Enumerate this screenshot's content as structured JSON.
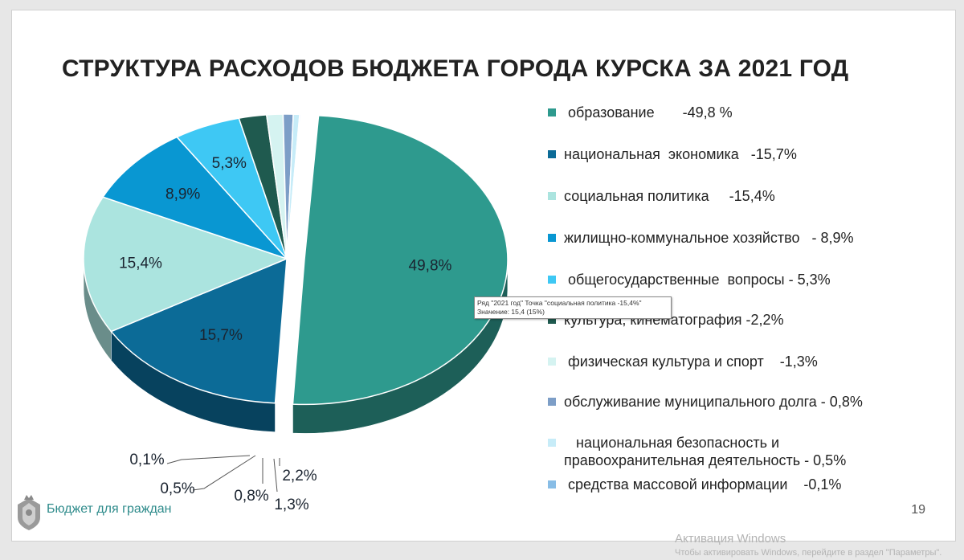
{
  "slide": {
    "title": "СТРУКТУРА РАСХОДОВ БЮДЖЕТА ГОРОДА КУРСКА ЗА 2021 ГОД",
    "footer_text": "Бюджет для граждан",
    "page_number": "19",
    "tooltip_line1": "Ряд \"2021 год\" Точка \"социальная политика      -15,4%\"",
    "tooltip_line2": "Значение: 15,4 (15%)"
  },
  "watermark": {
    "line1": "Активация Windows",
    "line2": "Чтобы активировать Windows, перейдите в раздел \"Параметры\"."
  },
  "legend": [
    {
      "text": " образование       -49,8 %",
      "color": "#2e9a8e"
    },
    {
      "text": "национальная  экономика   -15,7%",
      "color": "#0c6b97"
    },
    {
      "text": "социальная политика     -15,4%",
      "color": "#abe4df"
    },
    {
      "text": "жилищно-коммунальное хозяйство   - 8,9%",
      "color": "#0997d2"
    },
    {
      "text": " общегосударственные  вопросы - 5,3%",
      "color": "#3ec8f4"
    },
    {
      "text": "культура, кинематография -2,2%",
      "color": "#1f5a4f"
    },
    {
      "text": " физическая культура и спорт    -1,3%",
      "color": "#d5f3f1"
    },
    {
      "text": "обслуживание муниципального долга - 0,8%",
      "color": "#7d9ec7"
    },
    {
      "text": "   национальная безопасность и\nправоохранительная деятельность - 0,5%",
      "color": "#c7ecf8"
    },
    {
      "text": " средства массовой информации    -0,1%",
      "color": "#88bde6"
    }
  ],
  "chart_data": {
    "type": "pie",
    "title": "СТРУКТУРА РАСХОДОВ БЮДЖЕТА ГОРОДА КУРСКА ЗА 2021 ГОД",
    "series_name": "2021 год",
    "slices": [
      {
        "category": "образование",
        "value": 49.8,
        "label": "49,8%",
        "color": "#2e9a8e"
      },
      {
        "category": "национальная экономика",
        "value": 15.7,
        "label": "15,7%",
        "color": "#0c6b97"
      },
      {
        "category": "социальная политика",
        "value": 15.4,
        "label": "15,4%",
        "color": "#abe4df"
      },
      {
        "category": "жилищно-коммунальное хозяйство",
        "value": 8.9,
        "label": "8,9%",
        "color": "#0997d2"
      },
      {
        "category": "общегосударственные вопросы",
        "value": 5.3,
        "label": "5,3%",
        "color": "#3ec8f4"
      },
      {
        "category": "культура, кинематография",
        "value": 2.2,
        "label": "2,2%",
        "color": "#1f5a4f"
      },
      {
        "category": "физическая культура и спорт",
        "value": 1.3,
        "label": "1,3%",
        "color": "#d5f3f1"
      },
      {
        "category": "обслуживание муниципального долга",
        "value": 0.8,
        "label": "0,8%",
        "color": "#7d9ec7"
      },
      {
        "category": "национальная безопасность и правоохранительная деятельность",
        "value": 0.5,
        "label": "0,5%",
        "color": "#c7ecf8"
      },
      {
        "category": "средства массовой информации",
        "value": 0.1,
        "label": "0,1%",
        "color": "#88bde6"
      }
    ],
    "exploded_slice": "образование",
    "style": "3d"
  }
}
